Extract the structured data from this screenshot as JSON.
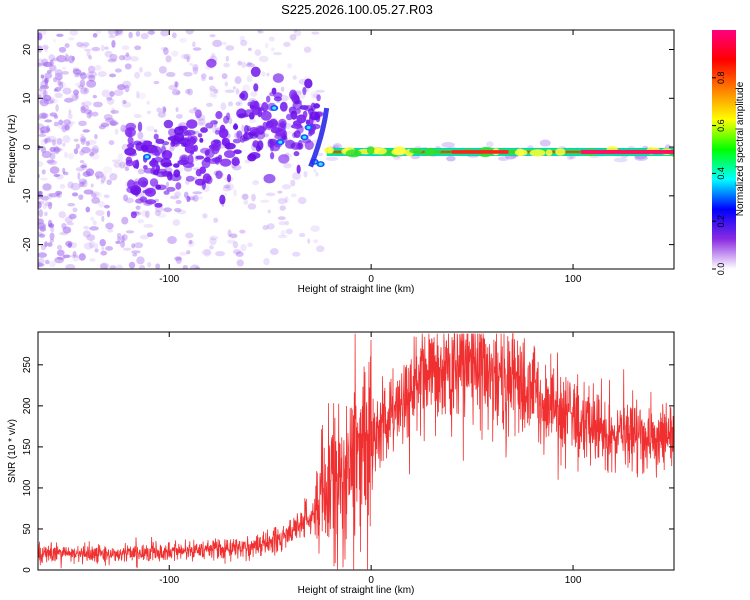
{
  "title": "S225.2026.100.05.27.R03",
  "chart_data": [
    {
      "type": "heatmap",
      "xlabel": "Height of straight line (km)",
      "ylabel": "Frequency (Hz)",
      "xlim": [
        -165,
        150
      ],
      "ylim": [
        -25,
        24
      ],
      "x_ticks": [
        -100,
        0,
        100
      ],
      "y_ticks": [
        -20,
        -10,
        0,
        10,
        20
      ],
      "colorbar": {
        "label": "Normalized spectral amplitude",
        "range": [
          0,
          1
        ],
        "ticks": [
          "0.0",
          "0.2",
          "0.4",
          "0.6",
          "0.8"
        ],
        "colors": [
          "#ffffff",
          "#8a2be2",
          "#0000ff",
          "#00ffff",
          "#00ff00",
          "#ffff00",
          "#ff8000",
          "#ff0000",
          "#ff0080"
        ]
      },
      "features": {
        "scattered_noise_x_range": [
          -165,
          -25
        ],
        "scattered_noise_freq_range": [
          -25,
          24
        ],
        "dense_blob_region_x": [
          -120,
          -25
        ],
        "dense_blob_region_freq": [
          -8,
          10
        ],
        "tonal_line_x_range": [
          -22,
          150
        ],
        "tonal_line_freq": -1,
        "tonal_line_amplitude": 0.85
      }
    },
    {
      "type": "line",
      "xlabel": "Height of straight line (km)",
      "ylabel": "SNR (10 * v/v)",
      "xlim": [
        -165,
        150
      ],
      "ylim": [
        0,
        290
      ],
      "x_ticks": [
        -100,
        0,
        100
      ],
      "y_ticks": [
        0,
        50,
        100,
        150,
        200,
        250
      ],
      "color": "#f03030",
      "envelope": {
        "x": [
          -165,
          -130,
          -100,
          -80,
          -60,
          -45,
          -35,
          -28,
          -22,
          -18,
          -12,
          -5,
          0,
          10,
          20,
          30,
          40,
          50,
          60,
          70,
          80,
          90,
          100,
          110,
          120,
          130,
          140,
          150
        ],
        "y": [
          20,
          20,
          22,
          25,
          28,
          38,
          55,
          75,
          90,
          110,
          130,
          150,
          160,
          190,
          215,
          235,
          245,
          248,
          240,
          230,
          215,
          198,
          185,
          175,
          168,
          163,
          160,
          160
        ]
      }
    }
  ]
}
